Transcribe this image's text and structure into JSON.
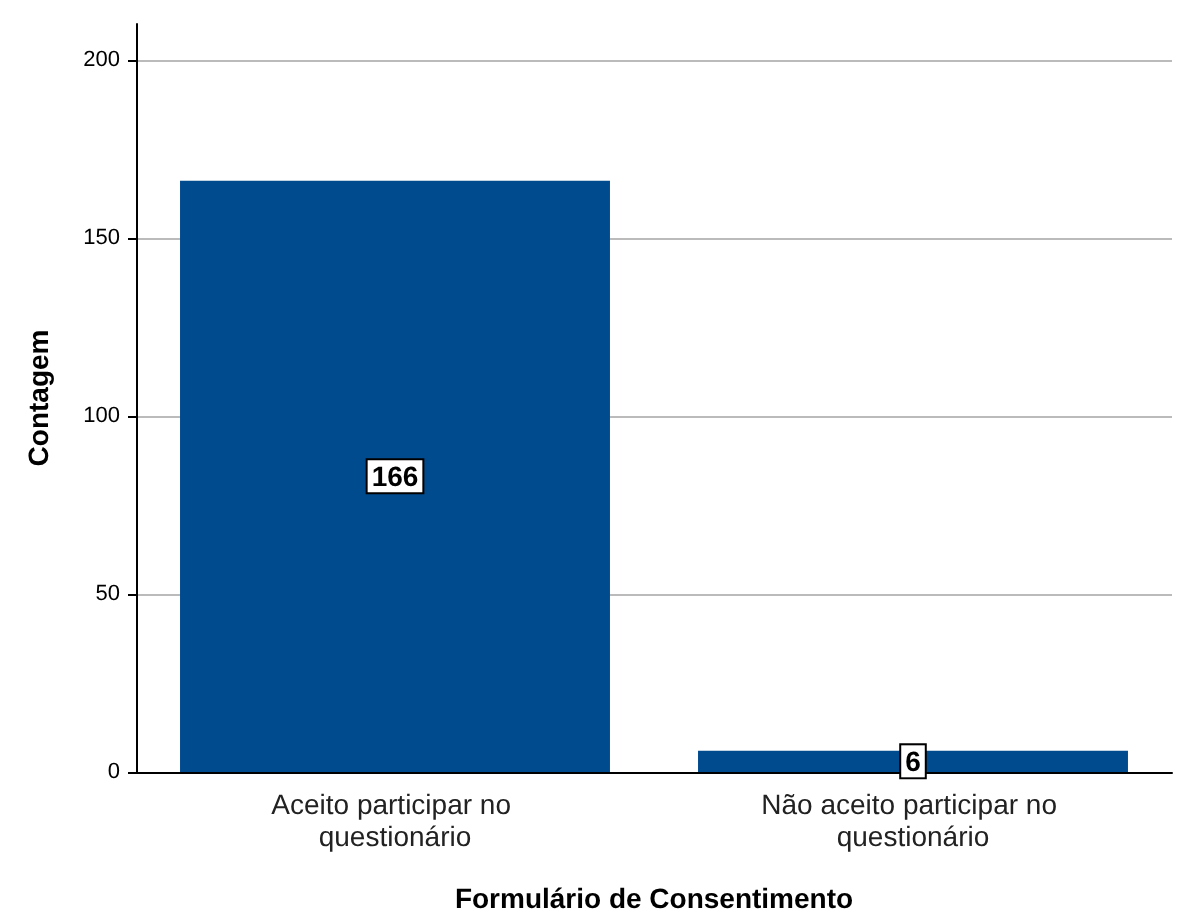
{
  "chart_data": {
    "type": "bar",
    "xlabel": "Formulário de Consentimento",
    "ylabel": "Contagem",
    "categories": [
      "Aceito participar no questionário",
      "Não aceito participar no questionário"
    ],
    "values": [
      166,
      6
    ],
    "color": "#004b8d",
    "ylim": [
      0,
      210
    ],
    "yticks": [
      0,
      50,
      100,
      150,
      200
    ],
    "grid": "y",
    "data_labels": true
  }
}
